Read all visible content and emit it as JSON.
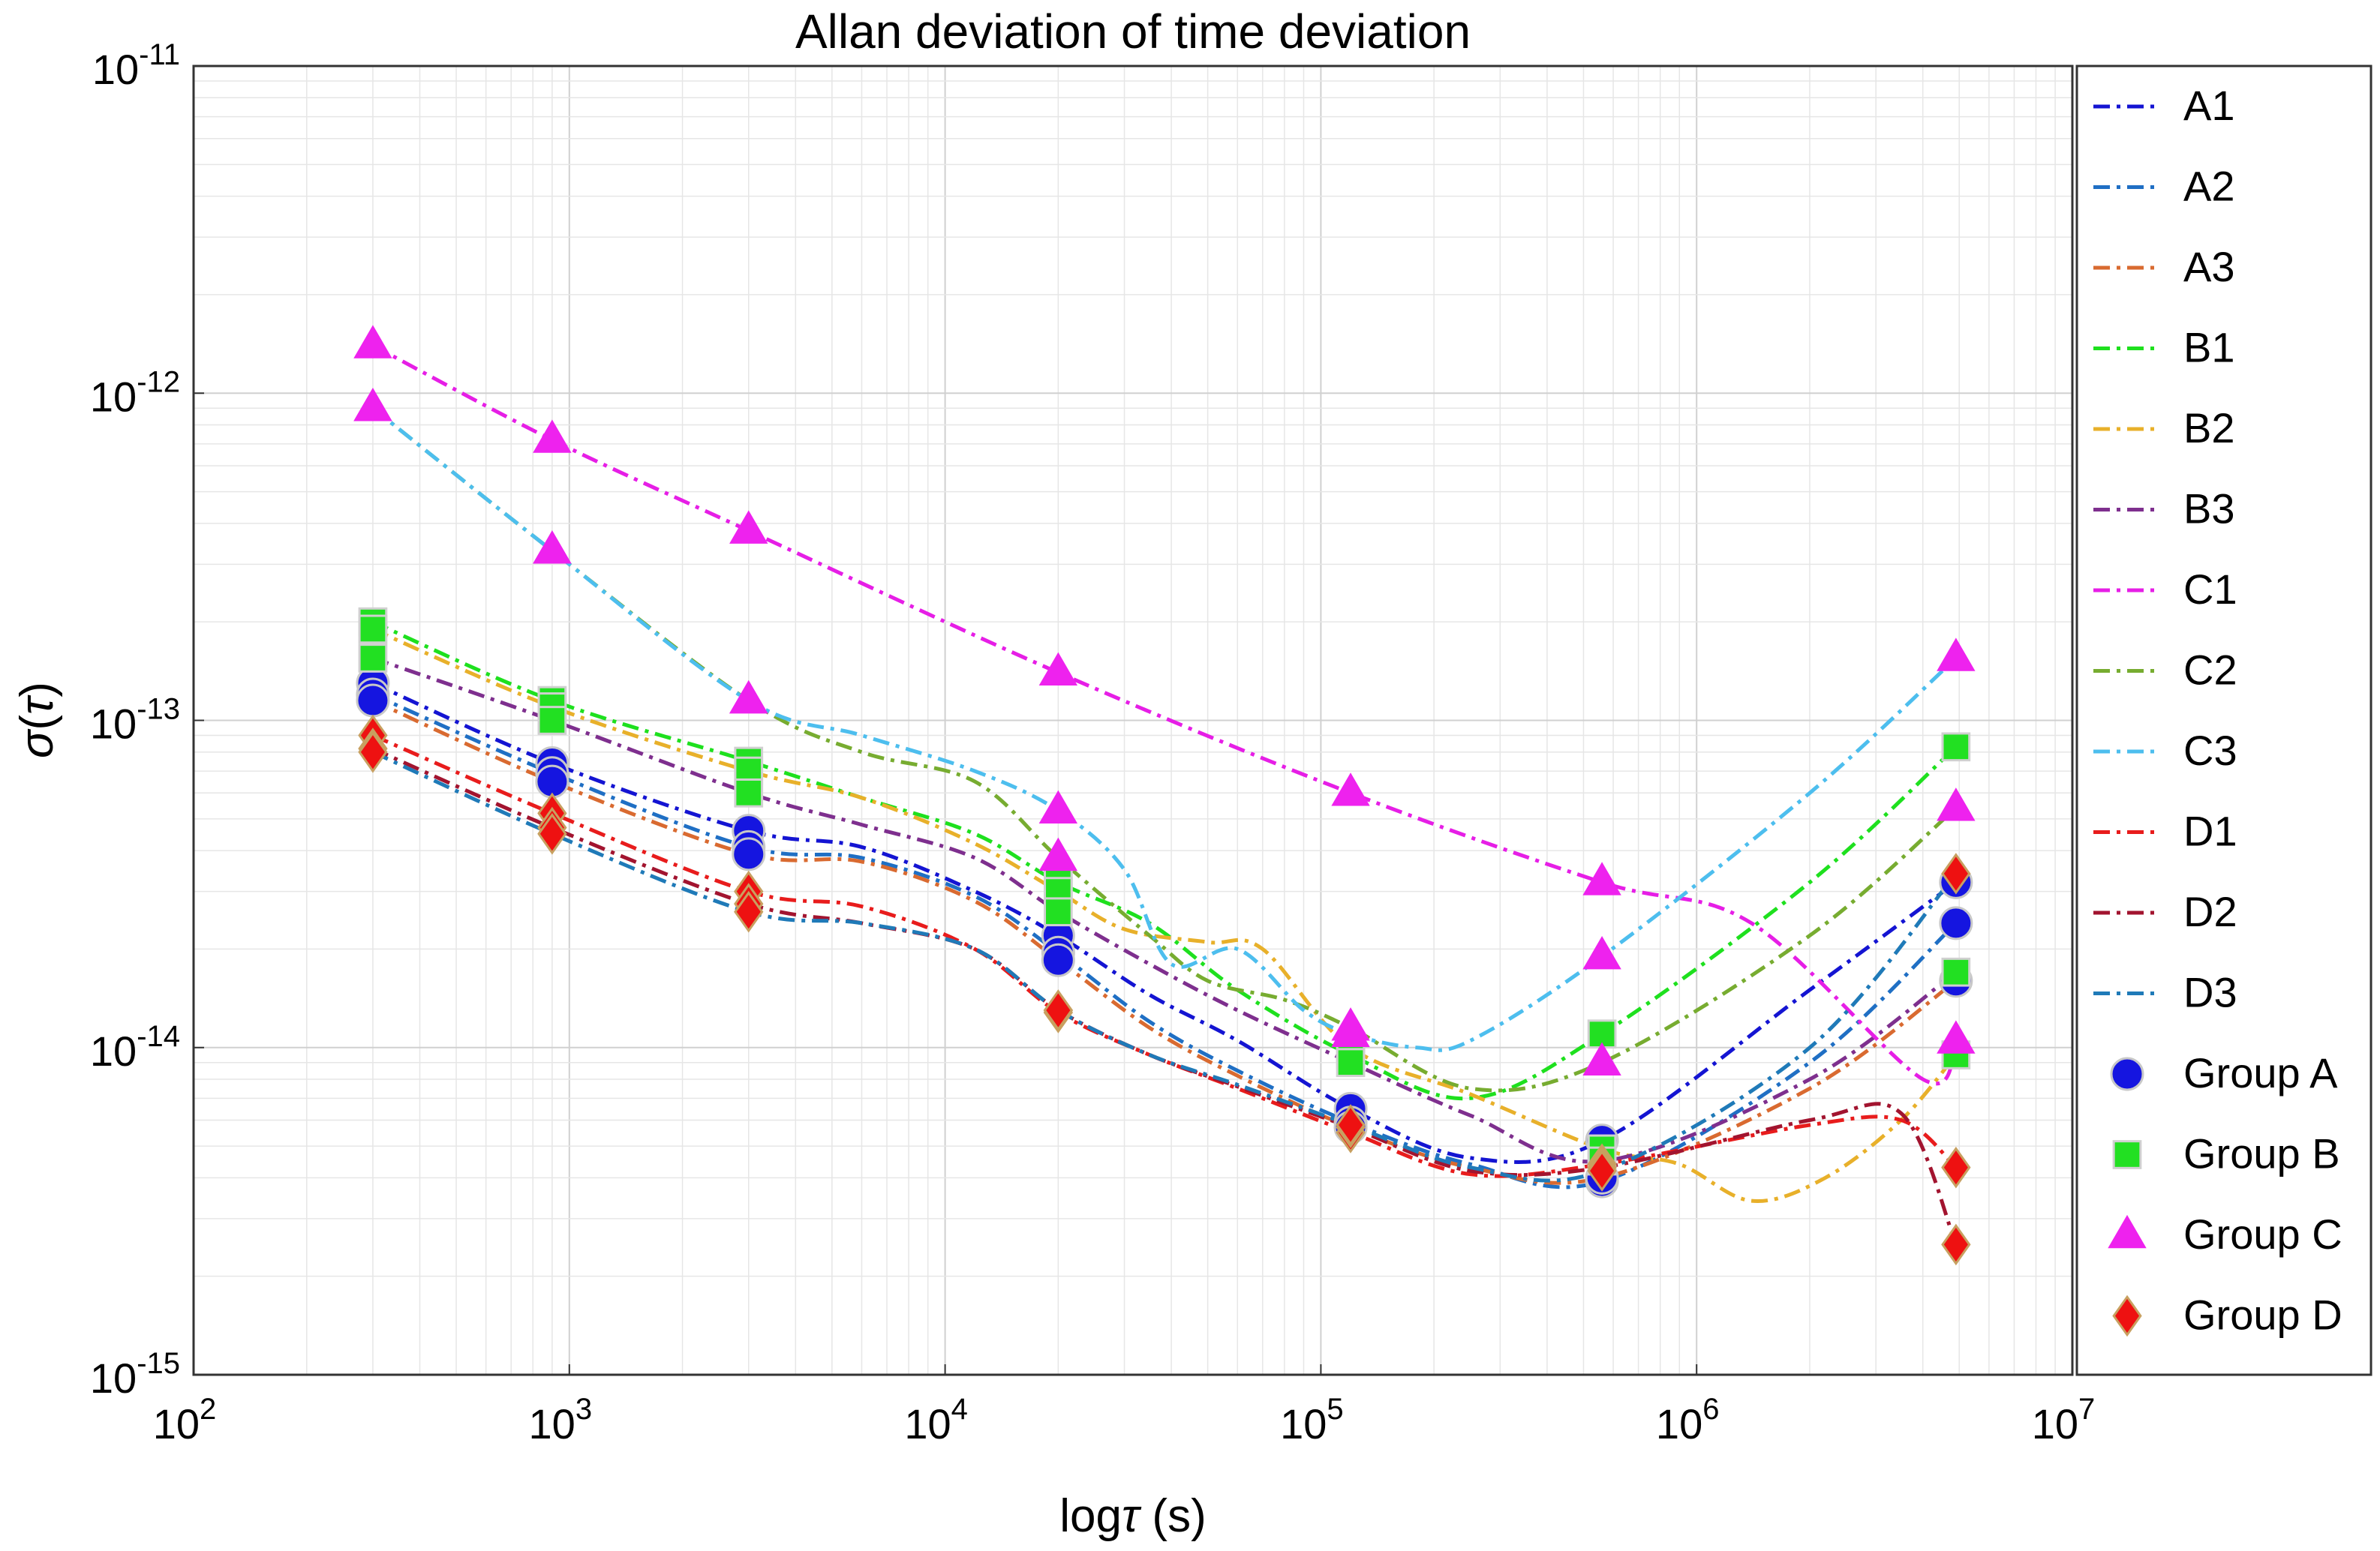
{
  "chart_data": {
    "type": "line",
    "title": "Allan deviation of time deviation",
    "xlabel": {
      "prefix": "log",
      "symbol": "τ",
      "suffix": " (s)"
    },
    "ylabel": {
      "symbol": "σ",
      "open": "(",
      "arg": "τ",
      "close": ")"
    },
    "xscale": "log",
    "yscale": "log",
    "xlim": [
      100,
      10000000
    ],
    "ylim": [
      1e-15,
      1e-11
    ],
    "grid": true,
    "legend_position": "right, outside plot area",
    "x_ticks": [
      {
        "value": 100,
        "base": "10",
        "exp": "2"
      },
      {
        "value": 1000,
        "base": "10",
        "exp": "3"
      },
      {
        "value": 10000,
        "base": "10",
        "exp": "4"
      },
      {
        "value": 100000,
        "base": "10",
        "exp": "5"
      },
      {
        "value": 1000000,
        "base": "10",
        "exp": "6"
      },
      {
        "value": 10000000,
        "base": "10",
        "exp": "7"
      }
    ],
    "y_ticks": [
      {
        "value": 1e-15,
        "base": "10",
        "exp": "-15"
      },
      {
        "value": 1e-14,
        "base": "10",
        "exp": "-14"
      },
      {
        "value": 1e-13,
        "base": "10",
        "exp": "-13"
      },
      {
        "value": 1e-12,
        "base": "10",
        "exp": "-12"
      },
      {
        "value": 1e-11,
        "base": "10",
        "exp": "-11"
      }
    ],
    "marker_taus": [
      300,
      900,
      3000,
      20000,
      120000,
      560000,
      4900000
    ],
    "series": [
      {
        "name": "A1",
        "color": "#1414d2",
        "group": "A",
        "points": [
          [
            300,
            1.3e-13
          ],
          [
            900,
            7.4e-14
          ],
          [
            3000,
            4.6e-14
          ],
          [
            6000,
            4.1e-14
          ],
          [
            12000,
            3e-14
          ],
          [
            20000,
            2.2e-14
          ],
          [
            35000,
            1.45e-14
          ],
          [
            60000,
            1.05e-14
          ],
          [
            120000,
            6.5e-15
          ],
          [
            250000,
            4.6e-15
          ],
          [
            560000,
            5.2e-15
          ],
          [
            2000000,
            1.5e-14
          ],
          [
            4900000,
            3.2e-14
          ]
        ]
      },
      {
        "name": "A2",
        "color": "#1f6fc4",
        "group": "A",
        "points": [
          [
            300,
            1.2e-13
          ],
          [
            900,
            6.9e-14
          ],
          [
            3000,
            4.1e-14
          ],
          [
            6000,
            3.8e-14
          ],
          [
            12000,
            2.9e-14
          ],
          [
            20000,
            1.95e-14
          ],
          [
            35000,
            1.2e-14
          ],
          [
            60000,
            8.5e-15
          ],
          [
            120000,
            5.9e-15
          ],
          [
            250000,
            4.4e-15
          ],
          [
            560000,
            3.9e-15
          ],
          [
            2000000,
            9e-15
          ],
          [
            4900000,
            2.4e-14
          ]
        ]
      },
      {
        "name": "A3",
        "color": "#d96a30",
        "group": "A",
        "points": [
          [
            300,
            1.15e-13
          ],
          [
            900,
            6.5e-14
          ],
          [
            3000,
            3.9e-14
          ],
          [
            6000,
            3.7e-14
          ],
          [
            12000,
            2.8e-14
          ],
          [
            20000,
            1.85e-14
          ],
          [
            35000,
            1.15e-14
          ],
          [
            60000,
            8.2e-15
          ],
          [
            120000,
            5.7e-15
          ],
          [
            250000,
            4.3e-15
          ],
          [
            560000,
            4e-15
          ],
          [
            2000000,
            7.5e-15
          ],
          [
            4900000,
            1.6e-14
          ]
        ]
      },
      {
        "name": "B1",
        "color": "#1ee01e",
        "group": "B",
        "points": [
          [
            300,
            2e-13
          ],
          [
            900,
            1.15e-13
          ],
          [
            3000,
            7.5e-14
          ],
          [
            6000,
            5.8e-14
          ],
          [
            12000,
            4.5e-14
          ],
          [
            20000,
            3.2e-14
          ],
          [
            35000,
            2.4e-14
          ],
          [
            60000,
            1.5e-14
          ],
          [
            120000,
            9.5e-15
          ],
          [
            250000,
            7e-15
          ],
          [
            560000,
            1.1e-14
          ],
          [
            2000000,
            3.2e-14
          ],
          [
            4900000,
            8.3e-14
          ]
        ]
      },
      {
        "name": "B2",
        "color": "#e8b02a",
        "group": "B",
        "points": [
          [
            300,
            1.9e-13
          ],
          [
            900,
            1.1e-13
          ],
          [
            3000,
            7e-14
          ],
          [
            6000,
            5.8e-14
          ],
          [
            12000,
            4.2e-14
          ],
          [
            20000,
            3e-14
          ],
          [
            30000,
            2.3e-14
          ],
          [
            50000,
            2.1e-14
          ],
          [
            70000,
            2e-14
          ],
          [
            120000,
            1e-14
          ],
          [
            250000,
            7.2e-15
          ],
          [
            560000,
            4.9e-15
          ],
          [
            900000,
            4.4e-15
          ],
          [
            1400000,
            3.4e-15
          ],
          [
            2200000,
            4e-15
          ],
          [
            3500000,
            6e-15
          ],
          [
            4900000,
            9.5e-15
          ]
        ]
      },
      {
        "name": "B3",
        "color": "#7e2f8e",
        "group": "B",
        "points": [
          [
            300,
            1.55e-13
          ],
          [
            900,
            1e-13
          ],
          [
            3000,
            6e-14
          ],
          [
            6000,
            4.8e-14
          ],
          [
            12000,
            3.8e-14
          ],
          [
            20000,
            2.6e-14
          ],
          [
            35000,
            1.8e-14
          ],
          [
            60000,
            1.3e-14
          ],
          [
            120000,
            9e-15
          ],
          [
            250000,
            6.2e-15
          ],
          [
            560000,
            4.5e-15
          ],
          [
            2000000,
            8e-15
          ],
          [
            4900000,
            1.7e-14
          ]
        ]
      },
      {
        "name": "C1",
        "color": "#e61ee6",
        "group": "C",
        "points": [
          [
            300,
            1.4e-12
          ],
          [
            900,
            7.2e-13
          ],
          [
            3000,
            3.8e-13
          ],
          [
            20000,
            1.4e-13
          ],
          [
            120000,
            6e-14
          ],
          [
            560000,
            3.2e-14
          ],
          [
            1400000,
            2.4e-14
          ],
          [
            4000000,
            8e-15
          ],
          [
            4900000,
            1.05e-14
          ]
        ]
      },
      {
        "name": "C2",
        "color": "#77ac30",
        "group": "C",
        "points": [
          [
            300,
            9e-13
          ],
          [
            900,
            3.3e-13
          ],
          [
            3000,
            1.15e-13
          ],
          [
            6000,
            8e-14
          ],
          [
            12000,
            6.5e-14
          ],
          [
            20000,
            3.8e-14
          ],
          [
            35000,
            2.2e-14
          ],
          [
            50000,
            1.6e-14
          ],
          [
            80000,
            1.4e-14
          ],
          [
            120000,
            1.15e-14
          ],
          [
            250000,
            7.5e-15
          ],
          [
            560000,
            9e-15
          ],
          [
            2000000,
            2.2e-14
          ],
          [
            4900000,
            5.4e-14
          ]
        ]
      },
      {
        "name": "C3",
        "color": "#4dbeee",
        "group": "C",
        "points": [
          [
            300,
            9e-13
          ],
          [
            900,
            3.3e-13
          ],
          [
            3000,
            1.15e-13
          ],
          [
            6000,
            9e-14
          ],
          [
            12000,
            7e-14
          ],
          [
            20000,
            5.3e-14
          ],
          [
            30000,
            3.5e-14
          ],
          [
            40000,
            1.8e-14
          ],
          [
            60000,
            2e-14
          ],
          [
            90000,
            1.3e-14
          ],
          [
            120000,
            1.1e-14
          ],
          [
            180000,
            1e-14
          ],
          [
            250000,
            1.05e-14
          ],
          [
            560000,
            1.9e-14
          ],
          [
            2000000,
            6e-14
          ],
          [
            4900000,
            1.55e-13
          ]
        ]
      },
      {
        "name": "D1",
        "color": "#e81c1c",
        "group": "D",
        "points": [
          [
            300,
            9e-14
          ],
          [
            900,
            5.2e-14
          ],
          [
            3000,
            3e-14
          ],
          [
            6000,
            2.7e-14
          ],
          [
            12000,
            2e-14
          ],
          [
            20000,
            1.28e-14
          ],
          [
            35000,
            9.5e-15
          ],
          [
            60000,
            7.5e-15
          ],
          [
            120000,
            5.5e-15
          ],
          [
            250000,
            4.1e-15
          ],
          [
            560000,
            4.4e-15
          ],
          [
            2000000,
            5.8e-15
          ],
          [
            3500000,
            6e-15
          ],
          [
            4900000,
            4.3e-15
          ]
        ]
      },
      {
        "name": "D2",
        "color": "#a2142f",
        "group": "D",
        "points": [
          [
            300,
            8.2e-14
          ],
          [
            900,
            4.7e-14
          ],
          [
            3000,
            2.75e-14
          ],
          [
            6000,
            2.4e-14
          ],
          [
            12000,
            2e-14
          ],
          [
            20000,
            1.3e-14
          ],
          [
            35000,
            9.5e-15
          ],
          [
            60000,
            7.6e-15
          ],
          [
            120000,
            5.7e-15
          ],
          [
            250000,
            4.2e-15
          ],
          [
            560000,
            4.3e-15
          ],
          [
            2000000,
            6e-15
          ],
          [
            3500000,
            6.3e-15
          ],
          [
            4900000,
            2.5e-15
          ]
        ]
      },
      {
        "name": "D3",
        "color": "#1f7ab8",
        "group": "D",
        "points": [
          [
            300,
            8e-14
          ],
          [
            900,
            4.5e-14
          ],
          [
            3000,
            2.6e-14
          ],
          [
            6000,
            2.4e-14
          ],
          [
            12000,
            2e-14
          ],
          [
            20000,
            1.3e-14
          ],
          [
            35000,
            9.5e-15
          ],
          [
            60000,
            7.7e-15
          ],
          [
            120000,
            5.8e-15
          ],
          [
            250000,
            4.3e-15
          ],
          [
            560000,
            4.2e-15
          ],
          [
            2000000,
            1e-14
          ],
          [
            4900000,
            3.4e-14
          ]
        ]
      }
    ],
    "groups": [
      {
        "name": "Group A",
        "key": "A",
        "marker": "circle",
        "fill": "#1515e0",
        "edge": "#c8c8c8"
      },
      {
        "name": "Group B",
        "key": "B",
        "marker": "square",
        "fill": "#22e022",
        "edge": "#d0d0d0"
      },
      {
        "name": "Group C",
        "key": "C",
        "marker": "triangle",
        "fill": "#ee22ee",
        "edge": "#ee22ee"
      },
      {
        "name": "Group D",
        "key": "D",
        "marker": "diamond",
        "fill": "#ee1111",
        "edge": "#c8a060"
      }
    ]
  }
}
